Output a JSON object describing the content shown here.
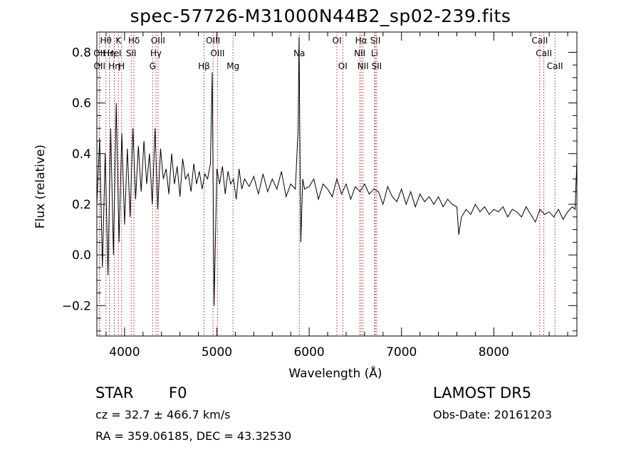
{
  "title": "spec-57726-M31000N44B2_sp02-239.fits",
  "info": {
    "class": "STAR",
    "subclass": "F0",
    "survey": "LAMOST DR5",
    "cz": "cz = 32.7 ± 466.7 km/s",
    "obs_date": "Obs-Date: 20161203",
    "coords": "RA = 359.06185, DEC =  43.32530"
  },
  "chart_data": {
    "type": "line",
    "xlabel": "Wavelength (Å)",
    "ylabel": "Flux (relative)",
    "xlim": [
      3700,
      8900
    ],
    "ylim": [
      -0.32,
      0.88
    ],
    "x_ticks": [
      4000,
      5000,
      6000,
      7000,
      8000
    ],
    "y_ticks": [
      -0.2,
      0.0,
      0.2,
      0.4,
      0.6,
      0.8
    ],
    "y_tick_labels": [
      "−0.2",
      "0.0",
      "0.2",
      "0.4",
      "0.6",
      "0.8"
    ],
    "grid": false,
    "series": [
      {
        "x": [
          3700,
          3730,
          3760,
          3790,
          3820,
          3850,
          3880,
          3910,
          3940,
          3970,
          4000,
          4030,
          4060,
          4090,
          4120,
          4150,
          4180,
          4210,
          4240,
          4270,
          4300,
          4330,
          4360,
          4390,
          4420,
          4450,
          4480,
          4510,
          4540,
          4570,
          4600,
          4630,
          4660,
          4690,
          4720,
          4750,
          4780,
          4810,
          4840,
          4870,
          4900,
          4930,
          4950,
          4970,
          5000,
          5030,
          5060,
          5090,
          5120,
          5150,
          5180,
          5210,
          5240,
          5270,
          5300,
          5350,
          5400,
          5450,
          5500,
          5550,
          5600,
          5650,
          5700,
          5750,
          5800,
          5850,
          5880,
          5890,
          5900,
          5910,
          5930,
          5950,
          6000,
          6050,
          6100,
          6150,
          6200,
          6250,
          6300,
          6350,
          6400,
          6450,
          6500,
          6550,
          6600,
          6650,
          6700,
          6750,
          6800,
          6850,
          6900,
          6950,
          7000,
          7050,
          7100,
          7150,
          7200,
          7250,
          7300,
          7350,
          7400,
          7450,
          7500,
          7550,
          7600,
          7620,
          7650,
          7700,
          7750,
          7800,
          7850,
          7900,
          7950,
          8000,
          8050,
          8100,
          8150,
          8200,
          8250,
          8300,
          8350,
          8400,
          8450,
          8500,
          8550,
          8600,
          8650,
          8700,
          8750,
          8800,
          8850,
          8880,
          8900
        ],
        "y": [
          0.2,
          0.46,
          -0.05,
          0.4,
          -0.08,
          0.5,
          0.0,
          0.6,
          0.05,
          0.48,
          0.12,
          0.42,
          0.15,
          0.5,
          0.22,
          0.43,
          0.25,
          0.45,
          0.28,
          0.4,
          0.2,
          0.5,
          0.18,
          0.42,
          0.3,
          0.34,
          0.24,
          0.4,
          0.28,
          0.35,
          0.23,
          0.38,
          0.3,
          0.32,
          0.25,
          0.36,
          0.28,
          0.33,
          0.26,
          0.32,
          0.3,
          0.36,
          0.72,
          -0.2,
          0.34,
          0.28,
          0.35,
          0.24,
          0.33,
          0.28,
          0.3,
          0.22,
          0.34,
          0.26,
          0.3,
          0.27,
          0.31,
          0.24,
          0.32,
          0.25,
          0.3,
          0.26,
          0.33,
          0.23,
          0.28,
          0.26,
          0.5,
          0.86,
          0.4,
          0.05,
          0.3,
          0.26,
          0.27,
          0.3,
          0.22,
          0.28,
          0.26,
          0.23,
          0.3,
          0.24,
          0.28,
          0.22,
          0.27,
          0.25,
          0.28,
          0.24,
          0.26,
          0.25,
          0.2,
          0.27,
          0.23,
          0.21,
          0.26,
          0.2,
          0.25,
          0.19,
          0.24,
          0.21,
          0.23,
          0.2,
          0.23,
          0.19,
          0.22,
          0.2,
          0.19,
          0.08,
          0.15,
          0.18,
          0.16,
          0.2,
          0.17,
          0.19,
          0.16,
          0.18,
          0.17,
          0.19,
          0.15,
          0.18,
          0.17,
          0.15,
          0.19,
          0.16,
          0.13,
          0.18,
          0.16,
          0.17,
          0.15,
          0.18,
          0.14,
          0.17,
          0.19,
          0.18,
          0.37
        ]
      }
    ],
    "lines": [
      {
        "label": "Hθ",
        "wave": 3798,
        "row": 0
      },
      {
        "label": "K",
        "wave": 3934,
        "row": 0
      },
      {
        "label": "Hδ",
        "wave": 4102,
        "row": 0
      },
      {
        "label": "OIII",
        "wave": 4363,
        "row": 0
      },
      {
        "label": "OIII",
        "wave": 4959,
        "row": 0
      },
      {
        "label": "Na",
        "wave": 5893,
        "row": 1
      },
      {
        "label": "OI",
        "wave": 6300,
        "row": 0
      },
      {
        "label": "Hα",
        "wave": 6563,
        "row": 0
      },
      {
        "label": "SII",
        "wave": 6716,
        "row": 0
      },
      {
        "label": "CaII",
        "wave": 8498,
        "row": 0
      },
      {
        "label": "OII",
        "wave": 3727,
        "row": 1
      },
      {
        "label": "Hη",
        "wave": 3835,
        "row": 1
      },
      {
        "label": "HeI",
        "wave": 3889,
        "row": 1
      },
      {
        "label": "SII",
        "wave": 4072,
        "row": 1
      },
      {
        "label": "Hγ",
        "wave": 4340,
        "row": 1
      },
      {
        "label": "OIII",
        "wave": 5007,
        "row": 1
      },
      {
        "label": "NII",
        "wave": 6548,
        "row": 1
      },
      {
        "label": "Li",
        "wave": 6708,
        "row": 1
      },
      {
        "label": "CaII",
        "wave": 8542,
        "row": 1
      },
      {
        "label": "OII",
        "wave": 3729,
        "row": 2
      },
      {
        "label": "Hη",
        "wave": 3889,
        "row": 2
      },
      {
        "label": "H",
        "wave": 3968,
        "row": 2
      },
      {
        "label": "G",
        "wave": 4304,
        "row": 2
      },
      {
        "label": "Hβ",
        "wave": 4861,
        "row": 2
      },
      {
        "label": "Mg",
        "wave": 5175,
        "row": 2
      },
      {
        "label": "OI",
        "wave": 6364,
        "row": 2
      },
      {
        "label": "NII",
        "wave": 6583,
        "row": 2
      },
      {
        "label": "SII",
        "wave": 6731,
        "row": 2
      },
      {
        "label": "CaII",
        "wave": 8662,
        "row": 2
      }
    ]
  }
}
